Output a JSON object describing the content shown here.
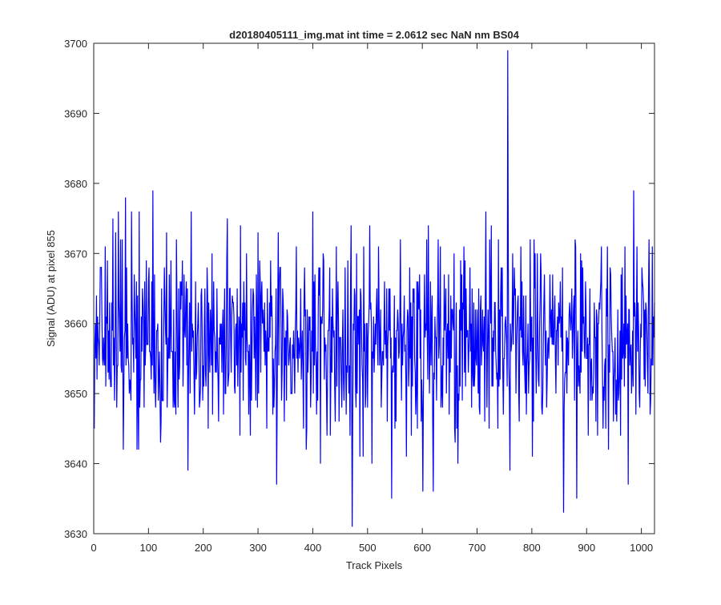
{
  "chart_data": {
    "type": "line",
    "title": "d20180405111_img.mat int time = 2.0612 sec  NaN nm BS04",
    "xlabel": "Track Pixels",
    "ylabel": "Signal (ADU) at pixel 855",
    "xlim": [
      0,
      1024
    ],
    "ylim": [
      3630,
      3700
    ],
    "xticks": [
      0,
      100,
      200,
      300,
      400,
      500,
      600,
      700,
      800,
      900,
      1000
    ],
    "yticks": [
      3630,
      3640,
      3650,
      3660,
      3670,
      3680,
      3690,
      3700
    ],
    "grid": false,
    "legend": "none",
    "colors": {
      "series": "#0000ff",
      "axes": "#262626"
    },
    "series": [
      {
        "x_start": 1,
        "x_step": 1,
        "count": 1024,
        "mean": 3657.5,
        "std": 6.5,
        "values_note_pairs": [
          [
            1,
            3645
          ],
          [
            5,
            3664
          ],
          [
            12,
            3668
          ],
          [
            16,
            3655
          ],
          [
            25,
            3669
          ],
          [
            33,
            3663
          ],
          [
            42,
            3648
          ],
          [
            49,
            3672
          ],
          [
            54,
            3642
          ],
          [
            58,
            3678
          ],
          [
            62,
            3660
          ],
          [
            68,
            3649
          ],
          [
            83,
            3676
          ],
          [
            98,
            3657
          ],
          [
            108,
            3679
          ],
          [
            122,
            3643
          ],
          [
            128,
            3661
          ],
          [
            141,
            3669
          ],
          [
            150,
            3647
          ],
          [
            165,
            3667
          ],
          [
            172,
            3639
          ],
          [
            178,
            3676
          ],
          [
            190,
            3660
          ],
          [
            201,
            3651
          ],
          [
            216,
            3670
          ],
          [
            228,
            3646
          ],
          [
            244,
            3675
          ],
          [
            258,
            3650
          ],
          [
            268,
            3674
          ],
          [
            277,
            3655
          ],
          [
            286,
            3644
          ],
          [
            300,
            3673
          ],
          [
            316,
            3645
          ],
          [
            322,
            3658
          ],
          [
            334,
            3637
          ],
          [
            346,
            3663
          ],
          [
            370,
            3671
          ],
          [
            388,
            3642
          ],
          [
            400,
            3676
          ],
          [
            414,
            3640
          ],
          [
            420,
            3669
          ],
          [
            432,
            3644
          ],
          [
            446,
            3666
          ],
          [
            457,
            3649
          ],
          [
            472,
            3631
          ],
          [
            480,
            3670
          ],
          [
            500,
            3648
          ],
          [
            520,
            3671
          ],
          [
            544,
            3635
          ],
          [
            560,
            3672
          ],
          [
            575,
            3651
          ],
          [
            590,
            3666
          ],
          [
            601,
            3636
          ],
          [
            611,
            3674
          ],
          [
            620,
            3636
          ],
          [
            640,
            3667
          ],
          [
            660,
            3643
          ],
          [
            676,
            3671
          ],
          [
            690,
            3648
          ],
          [
            703,
            3665
          ],
          [
            722,
            3645
          ],
          [
            744,
            3668
          ],
          [
            756,
            3699
          ],
          [
            760,
            3639
          ],
          [
            774,
            3663
          ],
          [
            790,
            3647
          ],
          [
            806,
            3670
          ],
          [
            820,
            3650
          ],
          [
            842,
            3664
          ],
          [
            858,
            3633
          ],
          [
            868,
            3661
          ],
          [
            882,
            3635
          ],
          [
            898,
            3666
          ],
          [
            912,
            3650
          ],
          [
            930,
            3645
          ],
          [
            944,
            3667
          ],
          [
            962,
            3644
          ],
          [
            976,
            3637
          ],
          [
            986,
            3679
          ],
          [
            996,
            3650
          ],
          [
            1006,
            3662
          ],
          [
            1016,
            3647
          ],
          [
            1020,
            3671
          ]
        ]
      }
    ]
  }
}
